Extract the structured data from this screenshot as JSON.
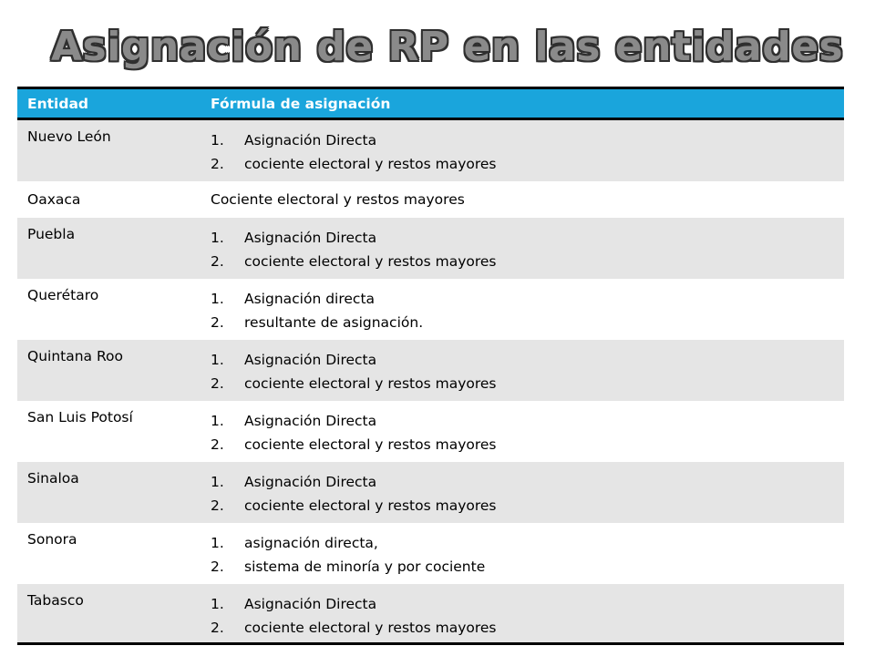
{
  "slide": {
    "title": "Asignación de RP en las entidades"
  },
  "table": {
    "headers": [
      "Entidad",
      "Fórmula de asignación"
    ],
    "rows": [
      {
        "entity": "Nuevo León",
        "items": [
          "Asignación Directa",
          "cociente electoral y restos mayores"
        ]
      },
      {
        "entity": "Oaxaca",
        "text": "Cociente electoral y restos mayores"
      },
      {
        "entity": "Puebla",
        "items": [
          "Asignación Directa",
          "cociente electoral y restos mayores"
        ]
      },
      {
        "entity": "Querétaro",
        "items": [
          "Asignación directa",
          "resultante de asignación."
        ]
      },
      {
        "entity": "Quintana Roo",
        "items": [
          "Asignación Directa",
          "cociente electoral y restos mayores"
        ]
      },
      {
        "entity": "San Luis Potosí",
        "items": [
          "Asignación Directa",
          "cociente electoral y restos mayores"
        ]
      },
      {
        "entity": "Sinaloa",
        "items": [
          "Asignación Directa",
          "cociente electoral y restos mayores"
        ]
      },
      {
        "entity": "Sonora",
        "items": [
          "asignación directa,",
          "sistema de minoría y por cociente"
        ]
      },
      {
        "entity": "Tabasco",
        "items": [
          "Asignación Directa",
          "cociente electoral y restos mayores"
        ]
      }
    ]
  },
  "list_markers": [
    "1.",
    "2."
  ],
  "colors": {
    "header_bg": "#1aa5dc",
    "row_shade": "#e5e5e5",
    "title_fill": "#8a8a8a"
  }
}
